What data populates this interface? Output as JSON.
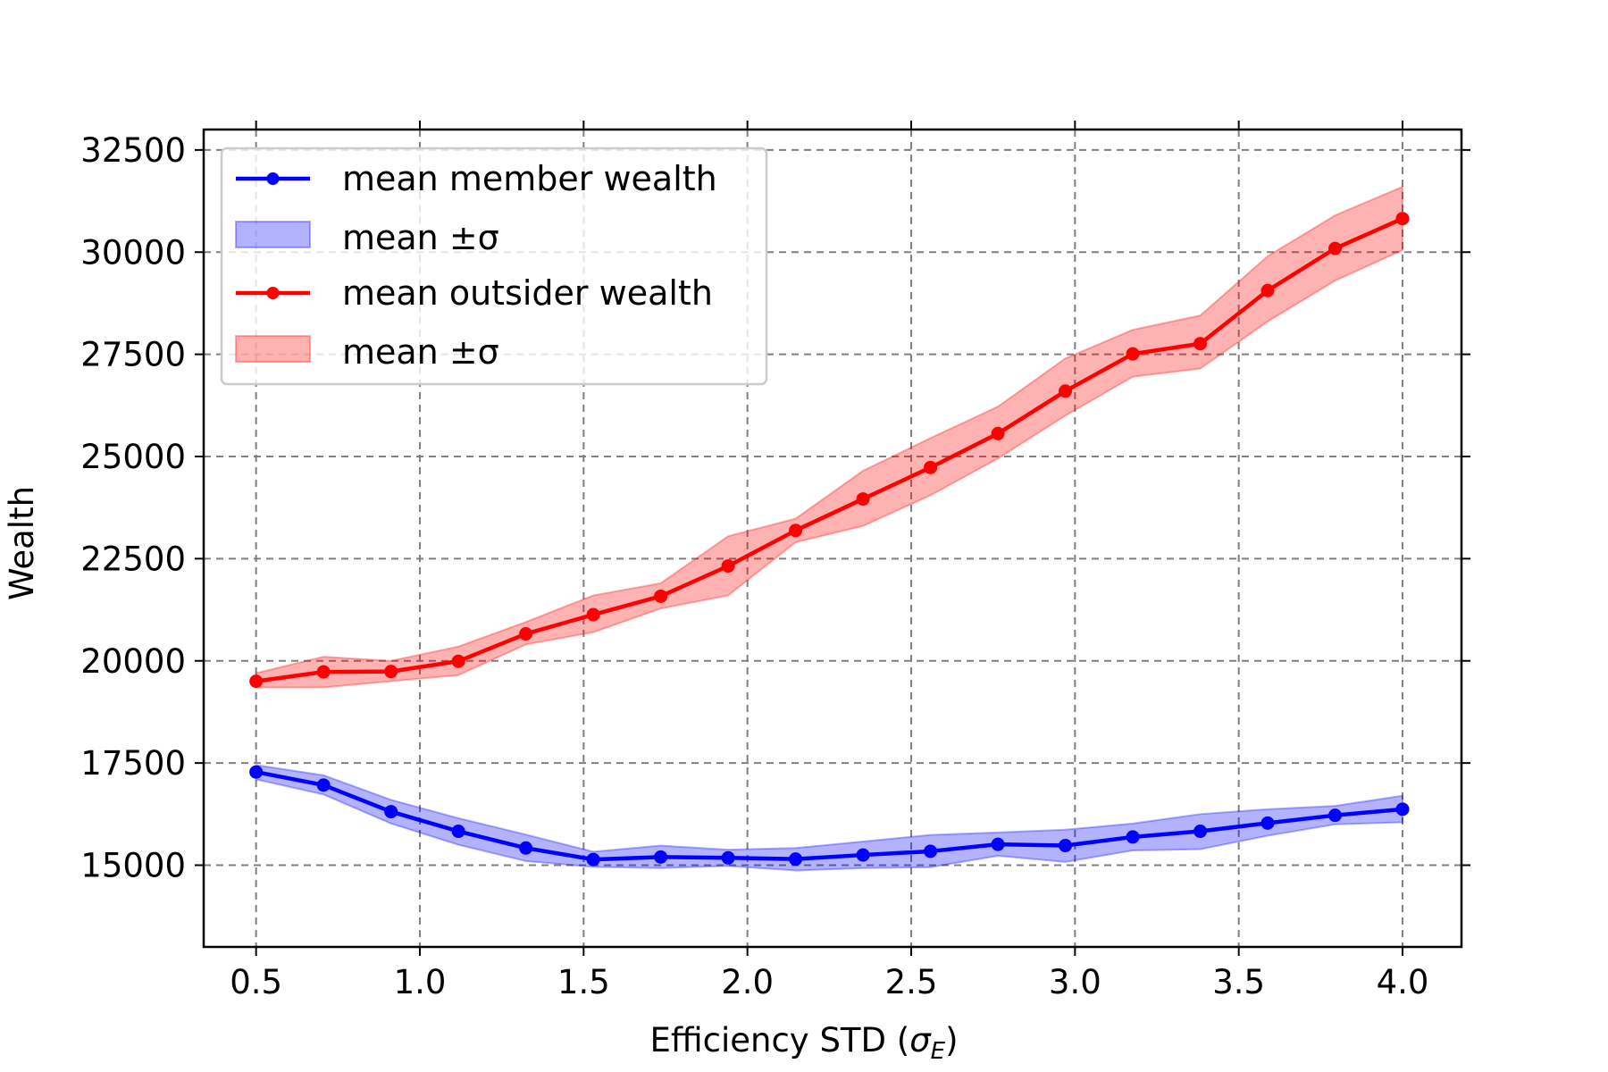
{
  "chart_data": {
    "type": "line",
    "xlabel": "Efficiency STD (",
    "xlabel_symbol": "σ",
    "xlabel_subscript": "E",
    "xlabel_close": ")",
    "ylabel": "Wealth",
    "xlim": [
      0.34,
      4.18
    ],
    "ylim": [
      13000,
      33000
    ],
    "xticks": [
      0.5,
      1.0,
      1.5,
      2.0,
      2.5,
      3.0,
      3.5,
      4.0
    ],
    "xtick_labels": [
      "0.5",
      "1.0",
      "1.5",
      "2.0",
      "2.5",
      "3.0",
      "3.5",
      "4.0"
    ],
    "yticks": [
      15000,
      17500,
      20000,
      22500,
      25000,
      27500,
      30000,
      32500
    ],
    "ytick_labels": [
      "15000",
      "17500",
      "20000",
      "22500",
      "25000",
      "27500",
      "30000",
      "32500"
    ],
    "grid": true,
    "legend_position": "top-left",
    "x": [
      0.5,
      0.7059,
      0.9118,
      1.1176,
      1.3235,
      1.5294,
      1.7353,
      1.9412,
      2.1471,
      2.3529,
      2.5588,
      2.7647,
      2.9706,
      3.1765,
      3.3824,
      3.5882,
      3.7941,
      4.0
    ],
    "series": [
      {
        "name": "mean member wealth",
        "band_label": "mean ±σ",
        "color": "#0000ff",
        "band_color": "#0000ff",
        "values": [
          17280,
          16960,
          16310,
          15830,
          15420,
          15140,
          15200,
          15180,
          15150,
          15250,
          15340,
          15510,
          15480,
          15690,
          15830,
          16030,
          16220,
          16370
        ],
        "upper": [
          17450,
          17200,
          16600,
          16150,
          15750,
          15330,
          15480,
          15380,
          15420,
          15580,
          15740,
          15800,
          15870,
          16020,
          16250,
          16370,
          16450,
          16700
        ],
        "lower": [
          17100,
          16730,
          16020,
          15500,
          15100,
          14960,
          14930,
          14980,
          14870,
          14930,
          14950,
          15230,
          15080,
          15360,
          15390,
          15720,
          16000,
          16050
        ]
      },
      {
        "name": "mean outsider wealth",
        "band_label": "mean ±σ",
        "color": "#ff0000",
        "band_color": "#ff0000",
        "values": [
          19500,
          19730,
          19740,
          19990,
          20660,
          21130,
          21580,
          22320,
          23190,
          23960,
          24730,
          25560,
          26600,
          27510,
          27760,
          29060,
          30090,
          30820
        ],
        "upper": [
          19700,
          20100,
          20000,
          20350,
          20950,
          21600,
          21900,
          23050,
          23480,
          24650,
          25450,
          26220,
          27400,
          28100,
          28450,
          29900,
          30900,
          31600
        ],
        "lower": [
          19350,
          19350,
          19500,
          19650,
          20400,
          20700,
          21280,
          21600,
          22900,
          23300,
          24050,
          24950,
          26000,
          26950,
          27150,
          28300,
          29300,
          30050
        ]
      }
    ]
  }
}
